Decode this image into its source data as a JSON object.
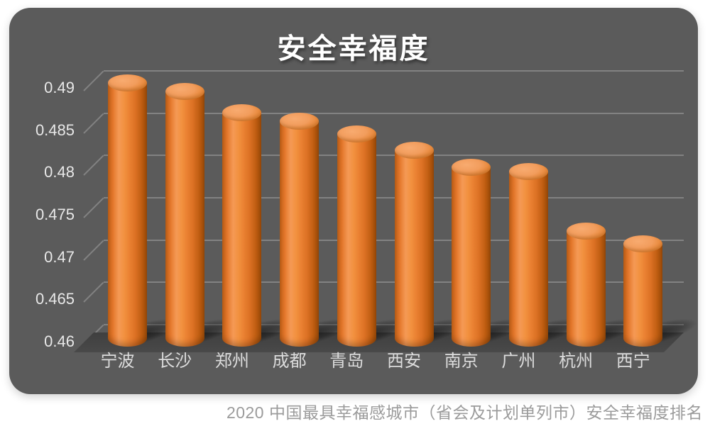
{
  "page": {
    "background": "#FFFFFF"
  },
  "chart": {
    "panel_bg": "#5B5B5B",
    "grid_color": "#8F8F8F",
    "bar_color": "#ED7D31",
    "title_color": "#FFFFFF",
    "axis_label_color": "#E8E8E8",
    "category_label_color": "#DCDCDC",
    "caption_color": "#9B9B9B"
  },
  "chart_data": {
    "type": "bar",
    "style": "3d-cylinder",
    "title": "安全幸福度",
    "categories": [
      "宁波",
      "长沙",
      "郑州",
      "成都",
      "青岛",
      "西安",
      "南京",
      "广州",
      "杭州",
      "西宁"
    ],
    "values": [
      0.49,
      0.489,
      0.4865,
      0.4855,
      0.484,
      0.482,
      0.48,
      0.4795,
      0.4725,
      0.471
    ],
    "ylim": [
      0.46,
      0.49
    ],
    "ytick_interval": 0.005,
    "ytick_labels": [
      "0.49",
      "0.485",
      "0.48",
      "0.475",
      "0.47",
      "0.465",
      "0.46"
    ],
    "xlabel": "",
    "ylabel": "",
    "grid": true,
    "legend_position": "none",
    "caption": "2020 中国最具幸福感城市（省会及计划单列市）安全幸福度排名"
  }
}
